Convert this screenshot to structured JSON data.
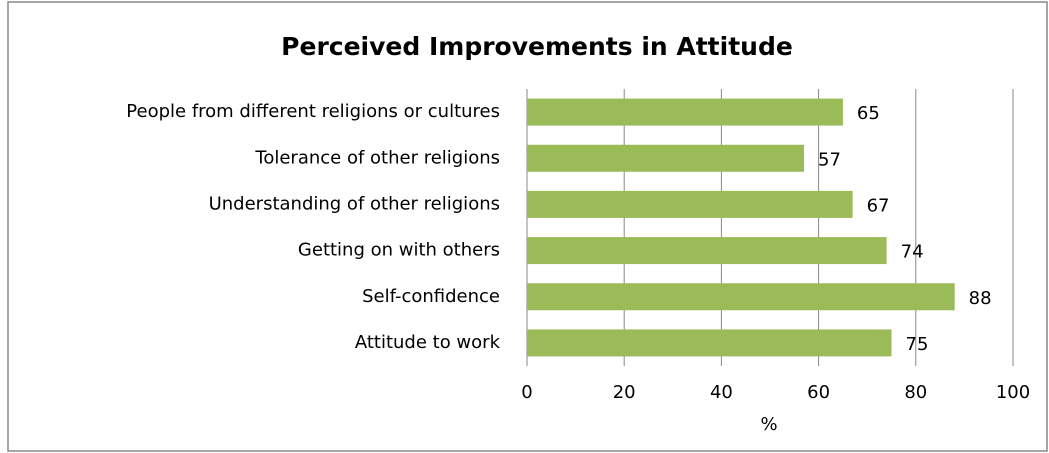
{
  "chart_data": {
    "type": "bar",
    "orientation": "horizontal",
    "title": "Perceived Improvements in Attitude",
    "categories": [
      "People from different religions or cultures",
      "Tolerance of other religions",
      "Understanding of other religions",
      "Getting on with others",
      "Self-confidence",
      "Attitude to work"
    ],
    "values": [
      65,
      57,
      67,
      74,
      88,
      75
    ],
    "color": "#9bbb59",
    "xlabel": "%",
    "xlim": [
      0,
      100
    ],
    "xticks": [
      0,
      20,
      40,
      60,
      80,
      100
    ],
    "grid": true
  }
}
